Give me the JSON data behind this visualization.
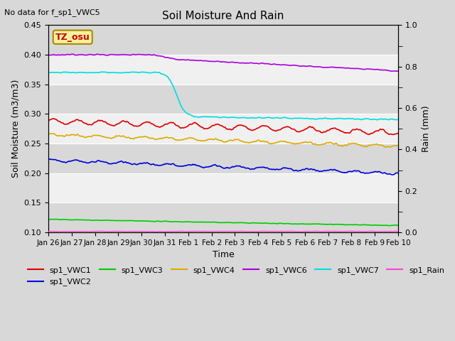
{
  "title": "Soil Moisture And Rain",
  "top_left_note": "No data for f_sp1_VWC5",
  "annotation_text": "TZ_osu",
  "xlabel": "Time",
  "ylabel_left": "Soil Moisture (m3/m3)",
  "ylabel_right": "Rain (mm)",
  "ylim_left": [
    0.1,
    0.45
  ],
  "ylim_right": [
    0.0,
    1.0
  ],
  "date_labels": [
    "Jan 26",
    "Jan 27",
    "Jan 28",
    "Jan 29",
    "Jan 30",
    "Jan 31",
    "Feb 1",
    "Feb 2",
    "Feb 3",
    "Feb 4",
    "Feb 5",
    "Feb 6",
    "Feb 7",
    "Feb 8",
    "Feb 9",
    "Feb 10"
  ],
  "fig_bg_color": "#d8d8d8",
  "band_dark": "#d8d8d8",
  "band_light": "#f0f0f0",
  "series": {
    "sp1_VWC1": {
      "color": "#dd0000",
      "label": "sp1_VWC1"
    },
    "sp1_VWC2": {
      "color": "#0000dd",
      "label": "sp1_VWC2"
    },
    "sp1_VWC3": {
      "color": "#00cc00",
      "label": "sp1_VWC3"
    },
    "sp1_VWC4": {
      "color": "#ddaa00",
      "label": "sp1_VWC4"
    },
    "sp1_VWC6": {
      "color": "#aa00dd",
      "label": "sp1_VWC6"
    },
    "sp1_VWC7": {
      "color": "#00dddd",
      "label": "sp1_VWC7"
    },
    "sp1_Rain": {
      "color": "#ff44cc",
      "label": "sp1_Rain"
    }
  },
  "n_points": 500,
  "time_days": 15
}
